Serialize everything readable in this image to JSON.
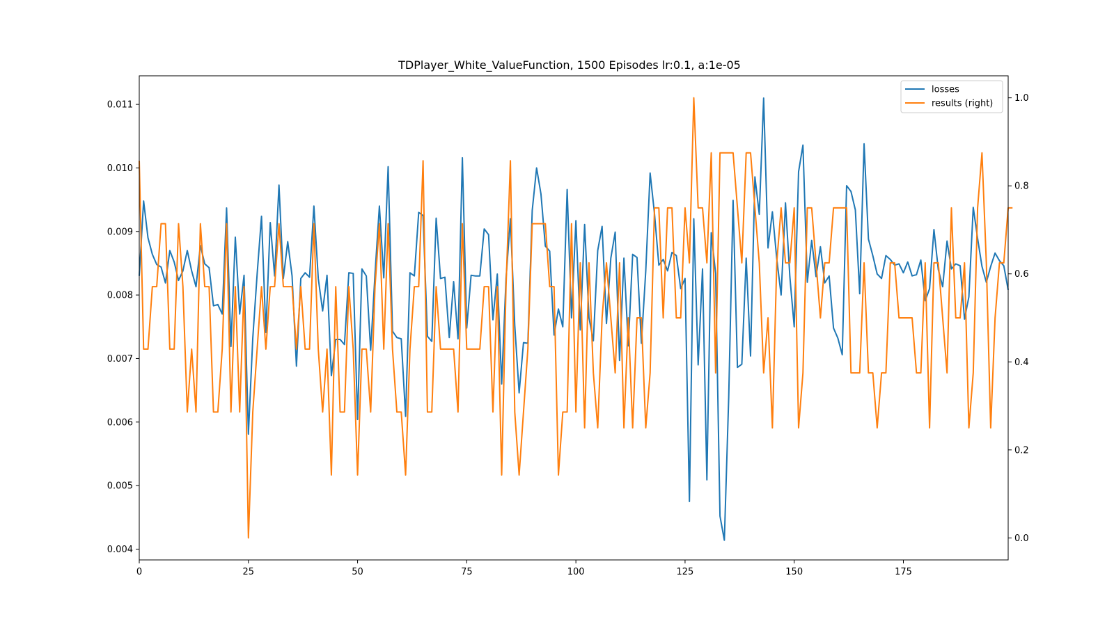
{
  "chart_data": {
    "type": "line",
    "title": "TDPlayer_White_ValueFunction, 1500 Episodes lr:0.1, a:1e-05",
    "xlabel": "",
    "ylabel": "",
    "xlim": [
      0,
      199
    ],
    "ylim": [
      0.00383,
      0.01145
    ],
    "ylim_right": [
      -0.05,
      1.05
    ],
    "x_ticks": [
      "0",
      "25",
      "50",
      "75",
      "100",
      "125",
      "150",
      "175"
    ],
    "x_tick_values": [
      0,
      25,
      50,
      75,
      100,
      125,
      150,
      175
    ],
    "y_ticks": [
      "0.004",
      "0.005",
      "0.006",
      "0.007",
      "0.008",
      "0.009",
      "0.010",
      "0.011"
    ],
    "y_tick_values": [
      0.004,
      0.005,
      0.006,
      0.007,
      0.008,
      0.009,
      0.01,
      0.011
    ],
    "y_right_ticks": [
      "0.0",
      "0.2",
      "0.4",
      "0.6",
      "0.8",
      "1.0"
    ],
    "y_right_tick_values": [
      0.0,
      0.2,
      0.4,
      0.6,
      0.8,
      1.0
    ],
    "grid": false,
    "legend_position": "top-right",
    "series": [
      {
        "name": "losses",
        "axis": "left",
        "color": "#1f77b4",
        "values": [
          0.0083,
          0.00948,
          0.0089,
          0.00864,
          0.00848,
          0.00844,
          0.00819,
          0.0087,
          0.00852,
          0.00823,
          0.00838,
          0.0087,
          0.00838,
          0.00813,
          0.00878,
          0.00849,
          0.00843,
          0.00783,
          0.00785,
          0.0077,
          0.00937,
          0.00719,
          0.00891,
          0.0077,
          0.00831,
          0.00581,
          0.00732,
          0.00833,
          0.00924,
          0.00741,
          0.00914,
          0.0083,
          0.00973,
          0.00826,
          0.00884,
          0.0083,
          0.00688,
          0.00826,
          0.00835,
          0.00828,
          0.0094,
          0.00826,
          0.00775,
          0.00831,
          0.00673,
          0.0073,
          0.0073,
          0.00722,
          0.00835,
          0.00834,
          0.00604,
          0.00841,
          0.0083,
          0.00713,
          0.00834,
          0.0094,
          0.00827,
          0.01002,
          0.00743,
          0.00733,
          0.00731,
          0.00609,
          0.00835,
          0.0083,
          0.0093,
          0.00925,
          0.00735,
          0.00727,
          0.00921,
          0.00826,
          0.00828,
          0.00733,
          0.00821,
          0.00731,
          0.01016,
          0.00748,
          0.00831,
          0.0083,
          0.0083,
          0.00904,
          0.00895,
          0.00761,
          0.00833,
          0.0066,
          0.00826,
          0.0092,
          0.00752,
          0.00646,
          0.00725,
          0.00724,
          0.00933,
          0.01,
          0.00959,
          0.00877,
          0.00869,
          0.00737,
          0.00778,
          0.0075,
          0.00966,
          0.00764,
          0.00917,
          0.00745,
          0.00911,
          0.00764,
          0.00728,
          0.0087,
          0.00908,
          0.00755,
          0.00858,
          0.00899,
          0.00697,
          0.00858,
          0.0072,
          0.00864,
          0.00859,
          0.00724,
          0.00838,
          0.00992,
          0.00928,
          0.00847,
          0.00856,
          0.00838,
          0.00867,
          0.00862,
          0.0081,
          0.00826,
          0.00475,
          0.0092,
          0.0069,
          0.00841,
          0.00509,
          0.00898,
          0.00834,
          0.00452,
          0.00414,
          0.00639,
          0.00949,
          0.00686,
          0.00691,
          0.00858,
          0.00704,
          0.00986,
          0.00927,
          0.0111,
          0.00874,
          0.00931,
          0.00857,
          0.008,
          0.00945,
          0.00829,
          0.0075,
          0.00994,
          0.01036,
          0.0082,
          0.00886,
          0.00829,
          0.00876,
          0.00819,
          0.0083,
          0.00748,
          0.00732,
          0.00706,
          0.00972,
          0.00963,
          0.00934,
          0.00802,
          0.01038,
          0.00888,
          0.00862,
          0.00833,
          0.00826,
          0.00862,
          0.00856,
          0.00847,
          0.00849,
          0.00835,
          0.00852,
          0.0083,
          0.00832,
          0.00855,
          0.00791,
          0.0081,
          0.00903,
          0.0084,
          0.00813,
          0.00885,
          0.00841,
          0.00849,
          0.00846,
          0.00762,
          0.00797,
          0.00938,
          0.00889,
          0.00845,
          0.0082,
          0.00845,
          0.00866,
          0.00854,
          0.00846,
          0.00808
        ]
      },
      {
        "name": "results (right)",
        "axis": "right",
        "color": "#ff7f0e",
        "values": [
          0.857,
          0.429,
          0.429,
          0.571,
          0.571,
          0.714,
          0.714,
          0.429,
          0.429,
          0.714,
          0.571,
          0.286,
          0.429,
          0.286,
          0.714,
          0.571,
          0.571,
          0.286,
          0.286,
          0.429,
          0.714,
          0.286,
          0.571,
          0.286,
          0.571,
          0.0,
          0.286,
          0.429,
          0.571,
          0.429,
          0.571,
          0.571,
          0.714,
          0.571,
          0.571,
          0.571,
          0.429,
          0.571,
          0.429,
          0.429,
          0.714,
          0.429,
          0.286,
          0.429,
          0.143,
          0.571,
          0.286,
          0.286,
          0.571,
          0.429,
          0.143,
          0.429,
          0.429,
          0.286,
          0.571,
          0.714,
          0.429,
          0.714,
          0.429,
          0.286,
          0.286,
          0.143,
          0.429,
          0.571,
          0.571,
          0.857,
          0.286,
          0.286,
          0.571,
          0.429,
          0.429,
          0.429,
          0.429,
          0.286,
          0.714,
          0.429,
          0.429,
          0.429,
          0.429,
          0.571,
          0.571,
          0.286,
          0.571,
          0.143,
          0.571,
          0.857,
          0.286,
          0.143,
          0.286,
          0.429,
          0.714,
          0.714,
          0.714,
          0.714,
          0.571,
          0.571,
          0.143,
          0.286,
          0.286,
          0.714,
          0.286,
          0.625,
          0.25,
          0.625,
          0.375,
          0.25,
          0.5,
          0.625,
          0.5,
          0.375,
          0.625,
          0.25,
          0.5,
          0.25,
          0.5,
          0.5,
          0.25,
          0.375,
          0.75,
          0.75,
          0.5,
          0.75,
          0.75,
          0.5,
          0.5,
          0.75,
          0.625,
          1.0,
          0.75,
          0.75,
          0.625,
          0.875,
          0.375,
          0.875,
          0.875,
          0.875,
          0.875,
          0.75,
          0.625,
          0.875,
          0.875,
          0.75,
          0.625,
          0.375,
          0.5,
          0.25,
          0.625,
          0.75,
          0.625,
          0.625,
          0.75,
          0.25,
          0.375,
          0.75,
          0.75,
          0.625,
          0.5,
          0.625,
          0.625,
          0.75,
          0.75,
          0.75,
          0.75,
          0.375,
          0.375,
          0.375,
          0.625,
          0.375,
          0.375,
          0.25,
          0.375,
          0.375,
          0.625,
          0.625,
          0.5,
          0.5,
          0.5,
          0.5,
          0.375,
          0.375,
          0.625,
          0.25,
          0.625,
          0.625,
          0.5,
          0.375,
          0.75,
          0.5,
          0.5,
          0.625,
          0.25,
          0.375,
          0.75,
          0.875,
          0.625,
          0.25,
          0.5,
          0.625,
          0.625,
          0.75,
          0.75
        ]
      }
    ]
  }
}
